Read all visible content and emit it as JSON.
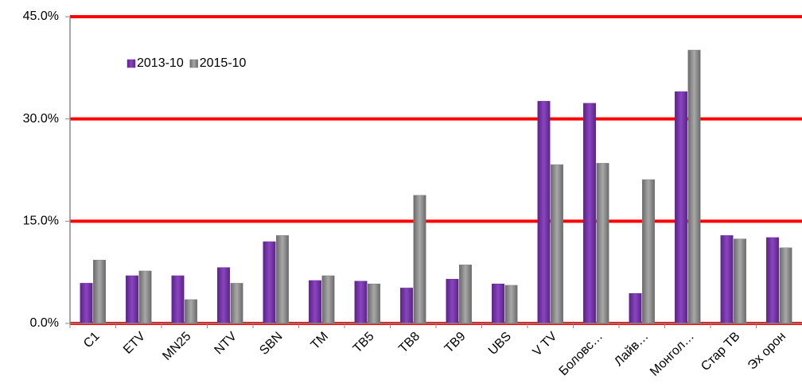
{
  "chart_data": {
    "type": "bar",
    "categories": [
      "C1",
      "ETV",
      "MN25",
      "NTV",
      "SBN",
      "TM",
      "TB5",
      "TB8",
      "TB9",
      "UBS",
      "V TV",
      "Боловс…",
      "Лайв…",
      "Монгол…",
      "Стар ТВ",
      "Эх орон"
    ],
    "series": [
      {
        "name": "2013-10",
        "color": "#7030a0",
        "values": [
          5.9,
          7.0,
          7.0,
          8.2,
          12.0,
          6.3,
          6.2,
          5.2,
          6.5,
          5.8,
          32.6,
          32.3,
          4.4,
          34.0,
          12.9,
          12.6
        ]
      },
      {
        "name": "2015-10",
        "color": "#808080",
        "values": [
          9.3,
          7.7,
          3.5,
          5.9,
          12.9,
          7.0,
          5.8,
          18.8,
          8.6,
          5.6,
          23.3,
          23.5,
          21.1,
          40.1,
          12.4,
          11.1
        ]
      }
    ],
    "ylim": [
      0,
      45
    ],
    "yticks": [
      {
        "value": 0,
        "label": "0.0%"
      },
      {
        "value": 15,
        "label": "15.0%"
      },
      {
        "value": 30,
        "label": "30.0%"
      },
      {
        "value": 45,
        "label": "45.0%"
      }
    ],
    "grid": true,
    "grid_color": "#ff0000",
    "legend": "upper left"
  }
}
